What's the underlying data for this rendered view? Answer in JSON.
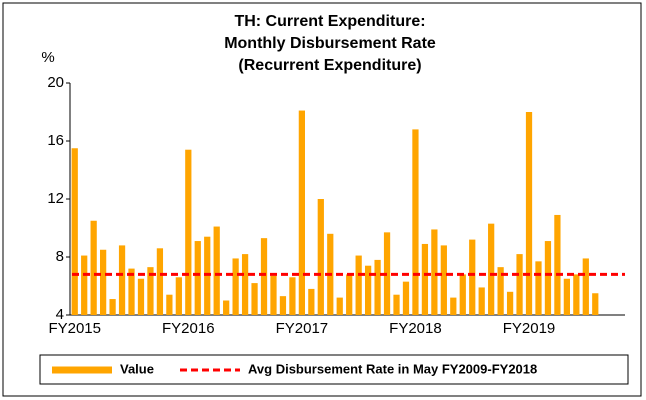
{
  "chart_data": {
    "type": "bar",
    "title": [
      "TH: Current Expenditure:",
      "Monthly Disbursement Rate",
      "(Recurrent Expenditure)"
    ],
    "y_label": "%",
    "categories": [
      "FY2015",
      null,
      null,
      null,
      null,
      null,
      null,
      null,
      null,
      null,
      null,
      null,
      "FY2016",
      null,
      null,
      null,
      null,
      null,
      null,
      null,
      null,
      null,
      null,
      null,
      "FY2017",
      null,
      null,
      null,
      null,
      null,
      null,
      null,
      null,
      null,
      null,
      null,
      "FY2018",
      null,
      null,
      null,
      null,
      null,
      null,
      null,
      null,
      null,
      null,
      null,
      "FY2019",
      null,
      null,
      null,
      null,
      null,
      null,
      null
    ],
    "series": [
      {
        "name": "Value",
        "color": "#ffa500",
        "values": [
          15.5,
          8.1,
          10.5,
          8.5,
          5.1,
          8.8,
          7.2,
          6.5,
          7.3,
          8.6,
          5.4,
          6.6,
          15.4,
          9.1,
          9.4,
          10.1,
          5.0,
          7.9,
          8.2,
          6.2,
          9.3,
          6.7,
          5.3,
          6.6,
          18.1,
          5.8,
          12.0,
          9.6,
          5.2,
          6.8,
          8.1,
          7.4,
          7.8,
          9.7,
          5.4,
          6.3,
          16.8,
          8.9,
          9.9,
          8.8,
          5.2,
          6.8,
          9.2,
          5.9,
          10.3,
          7.3,
          5.6,
          8.2,
          18.0,
          7.7,
          9.1,
          10.9,
          6.5,
          6.8,
          7.9,
          5.5
        ]
      }
    ],
    "avg_line": {
      "name": "Avg Disbursement Rate in May FY2009-FY2018",
      "value": 6.8,
      "color": "#ff0000"
    },
    "ylim": [
      4,
      20
    ],
    "yticks": [
      4,
      8,
      12,
      16,
      20
    ],
    "grid": false
  }
}
